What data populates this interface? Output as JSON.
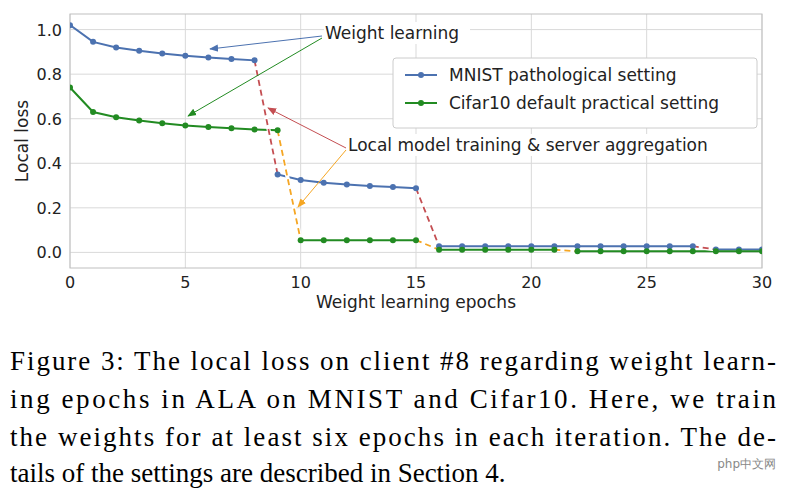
{
  "chart_data": {
    "type": "line",
    "x_label": "Weight learning epochs",
    "y_label": "Local loss",
    "x": [
      0,
      1,
      2,
      3,
      4,
      5,
      6,
      7,
      8,
      9,
      10,
      11,
      12,
      13,
      14,
      15,
      16,
      17,
      18,
      19,
      20,
      21,
      22,
      23,
      24,
      25,
      26,
      27,
      28,
      29,
      30
    ],
    "series": [
      {
        "name": "MNIST pathological setting",
        "color": "#4c72b0",
        "marker": "circle",
        "line_style": "solid",
        "values": [
          1.02,
          0.945,
          0.92,
          0.905,
          0.893,
          0.883,
          0.875,
          0.868,
          0.862,
          0.35,
          0.325,
          0.313,
          0.305,
          0.298,
          0.293,
          0.288,
          0.028,
          0.028,
          0.028,
          0.028,
          0.028,
          0.028,
          0.028,
          0.028,
          0.028,
          0.028,
          0.028,
          0.028,
          0.013,
          0.013,
          0.013
        ]
      },
      {
        "name": "Cifar10 default practical setting",
        "color": "#228b22",
        "marker": "circle",
        "line_style": "solid",
        "values": [
          0.74,
          0.63,
          0.607,
          0.592,
          0.58,
          0.57,
          0.563,
          0.557,
          0.552,
          0.548,
          0.055,
          0.055,
          0.055,
          0.055,
          0.055,
          0.055,
          0.012,
          0.012,
          0.012,
          0.012,
          0.012,
          0.012,
          0.005,
          0.005,
          0.005,
          0.005,
          0.005,
          0.005,
          0.005,
          0.005,
          0.005
        ]
      },
      {
        "color": "#c44e52",
        "marker": "none",
        "line_style": "dashed",
        "values": [
          null,
          null,
          null,
          null,
          null,
          null,
          null,
          null,
          0.862,
          0.35,
          null,
          null,
          null,
          null,
          null,
          0.288,
          0.028,
          null,
          null,
          null,
          null,
          null,
          null,
          null,
          null,
          null,
          null,
          0.028,
          0.013,
          null,
          null
        ]
      },
      {
        "color": "#f5a623",
        "marker": "none",
        "line_style": "dashed",
        "values": [
          null,
          null,
          null,
          null,
          null,
          null,
          null,
          null,
          null,
          0.548,
          0.055,
          null,
          null,
          null,
          null,
          0.055,
          0.012,
          null,
          null,
          null,
          null,
          0.012,
          0.005,
          null,
          null,
          null,
          null,
          null,
          null,
          null,
          null
        ]
      }
    ],
    "xlim": [
      0,
      30
    ],
    "ylim": [
      -0.07,
      1.07
    ],
    "xticks": [
      0,
      5,
      10,
      15,
      20,
      25,
      30
    ],
    "yticks": [
      {
        "value": 0,
        "label": "0.0"
      },
      0.2,
      0.4,
      0.6,
      0.8,
      {
        "value": 1,
        "label": "1.0"
      }
    ],
    "grid": true,
    "legend": "upper right",
    "annotations": [
      "Weight learning",
      "Local model training & server aggregation"
    ],
    "caption": [
      "Figure 3: The local loss on client #8 regarding weight learn-",
      "ing epochs in ALA on MNIST and Cifar10. Here, we train",
      "the weights for at least six epochs in each iteration. The de-",
      "tails of the settings are described in Section 4."
    ],
    "watermark": "php中文网"
  }
}
